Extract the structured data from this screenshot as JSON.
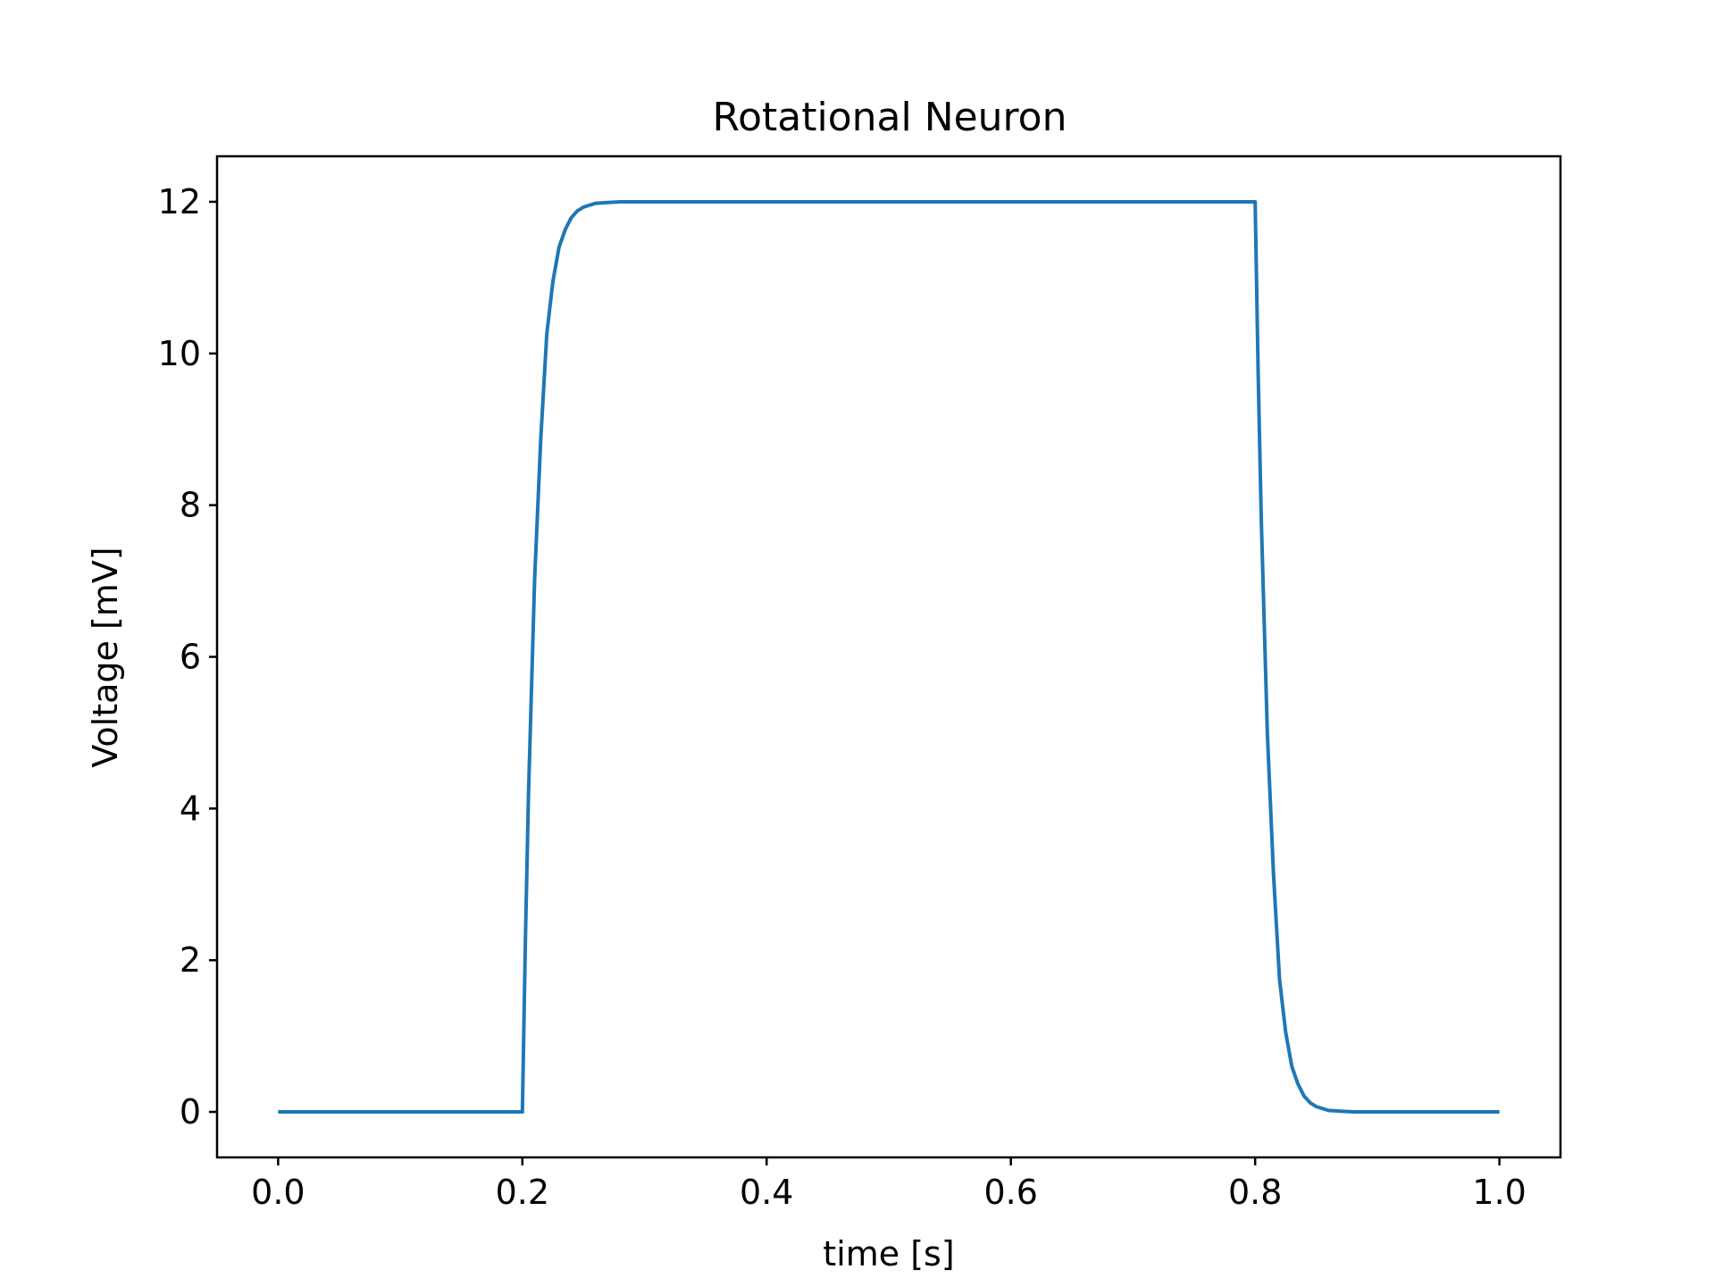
{
  "chart_data": {
    "type": "line",
    "title": "Rotational Neuron",
    "xlabel": "time [s]",
    "ylabel": "Voltage [mV]",
    "xlim": [
      -0.05,
      1.05
    ],
    "ylim": [
      -0.6,
      12.6
    ],
    "xticks": [
      0.0,
      0.2,
      0.4,
      0.6,
      0.8,
      1.0
    ],
    "xtick_labels": [
      "0.0",
      "0.2",
      "0.4",
      "0.6",
      "0.8",
      "1.0"
    ],
    "yticks": [
      0,
      2,
      4,
      6,
      8,
      10,
      12
    ],
    "ytick_labels": [
      "0",
      "2",
      "4",
      "6",
      "8",
      "10",
      "12"
    ],
    "grid": false,
    "legend": "none",
    "color": "#1f77b4",
    "series": [
      {
        "x": [
          0.0,
          0.1,
          0.2,
          0.2025,
          0.205,
          0.21,
          0.215,
          0.22,
          0.225,
          0.23,
          0.235,
          0.24,
          0.245,
          0.25,
          0.26,
          0.27,
          0.28,
          0.3,
          0.5,
          0.7,
          0.8,
          0.8025,
          0.805,
          0.81,
          0.815,
          0.82,
          0.825,
          0.83,
          0.835,
          0.84,
          0.845,
          0.85,
          0.86,
          0.87,
          0.88,
          0.9,
          1.0
        ],
        "y": [
          0.0,
          0.0,
          0.0,
          2.29,
          4.18,
          7.01,
          8.86,
          10.26,
          10.95,
          11.4,
          11.63,
          11.79,
          11.88,
          11.93,
          11.98,
          11.99,
          12.0,
          12.0,
          12.0,
          12.0,
          12.0,
          9.71,
          7.82,
          4.99,
          3.14,
          1.74,
          1.05,
          0.6,
          0.37,
          0.21,
          0.12,
          0.07,
          0.02,
          0.01,
          0.0,
          0.0,
          0.0
        ]
      }
    ]
  }
}
